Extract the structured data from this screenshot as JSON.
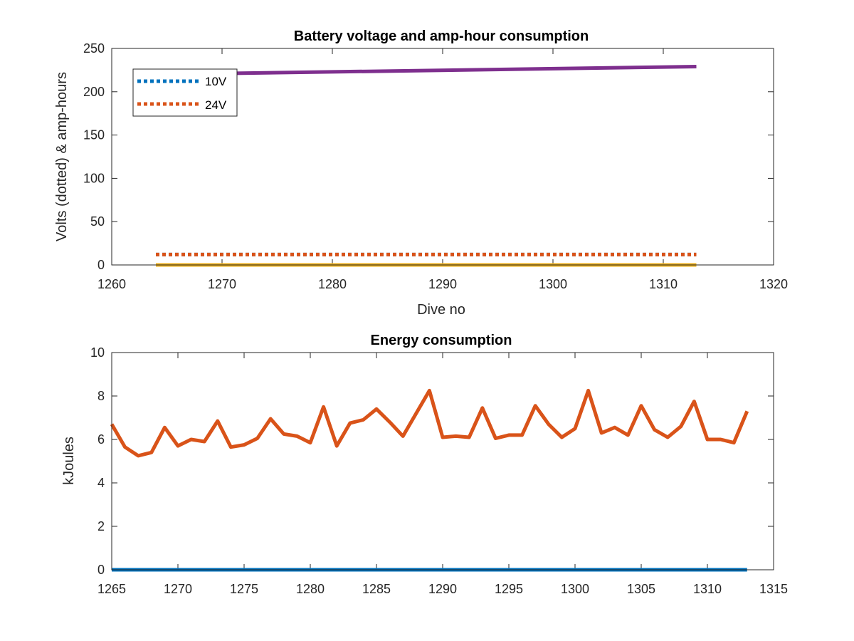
{
  "chart_data": [
    {
      "type": "line",
      "title": "Battery voltage and amp-hour consumption",
      "xlabel": "Dive no",
      "ylabel": "Volts (dotted) & amp-hours",
      "xlim": [
        1260,
        1320
      ],
      "ylim": [
        0,
        250
      ],
      "xticks": [
        1260,
        1270,
        1280,
        1290,
        1300,
        1310,
        1320
      ],
      "yticks": [
        0,
        50,
        100,
        150,
        200,
        250
      ],
      "grid": false,
      "legend_position": "top-left",
      "legend": [
        "10V",
        "24V"
      ],
      "series": [
        {
          "name": "10V",
          "style": "dotted",
          "color": "#0072BD",
          "x": [
            1264,
            1313
          ],
          "y": [
            12,
            12
          ]
        },
        {
          "name": "24V",
          "style": "dotted",
          "color": "#D95319",
          "x": [
            1264,
            1313
          ],
          "y": [
            12,
            12
          ]
        },
        {
          "style": "solid",
          "color": "#EDB120",
          "x": [
            1264,
            1313
          ],
          "y": [
            0,
            0
          ]
        },
        {
          "style": "solid",
          "color": "#7E2F8E",
          "x": [
            1264,
            1313
          ],
          "y": [
            220,
            229
          ]
        }
      ]
    },
    {
      "type": "line",
      "title": "Energy consumption",
      "xlabel": "",
      "ylabel": "kJoules",
      "xlim": [
        1265,
        1315
      ],
      "ylim": [
        0,
        10
      ],
      "xticks": [
        1265,
        1270,
        1275,
        1280,
        1285,
        1290,
        1295,
        1300,
        1305,
        1310,
        1315
      ],
      "yticks": [
        0,
        2,
        4,
        6,
        8,
        10
      ],
      "grid": false,
      "series": [
        {
          "style": "solid",
          "color": "#0072BD",
          "x": [
            1265,
            1313
          ],
          "y": [
            0,
            0
          ]
        },
        {
          "style": "solid",
          "color": "#D95319",
          "x": [
            1265,
            1266,
            1267,
            1268,
            1269,
            1270,
            1271,
            1272,
            1273,
            1274,
            1275,
            1276,
            1277,
            1278,
            1279,
            1280,
            1281,
            1282,
            1283,
            1284,
            1285,
            1286,
            1287,
            1288,
            1289,
            1290,
            1291,
            1292,
            1293,
            1294,
            1295,
            1296,
            1297,
            1298,
            1299,
            1300,
            1301,
            1302,
            1303,
            1304,
            1305,
            1306,
            1307,
            1308,
            1309,
            1310,
            1311,
            1312,
            1313
          ],
          "y": [
            6.7,
            5.65,
            5.25,
            5.4,
            6.55,
            5.7,
            6.0,
            5.9,
            6.85,
            5.65,
            5.75,
            6.05,
            6.95,
            6.25,
            6.15,
            5.85,
            7.5,
            5.7,
            6.75,
            6.9,
            7.4,
            6.8,
            6.15,
            7.2,
            8.25,
            6.1,
            6.15,
            6.1,
            7.45,
            6.05,
            6.2,
            6.2,
            7.55,
            6.7,
            6.1,
            6.5,
            8.25,
            6.3,
            6.55,
            6.2,
            7.55,
            6.45,
            6.1,
            6.6,
            7.75,
            6.0,
            6.0,
            5.85,
            7.3
          ]
        }
      ]
    }
  ]
}
